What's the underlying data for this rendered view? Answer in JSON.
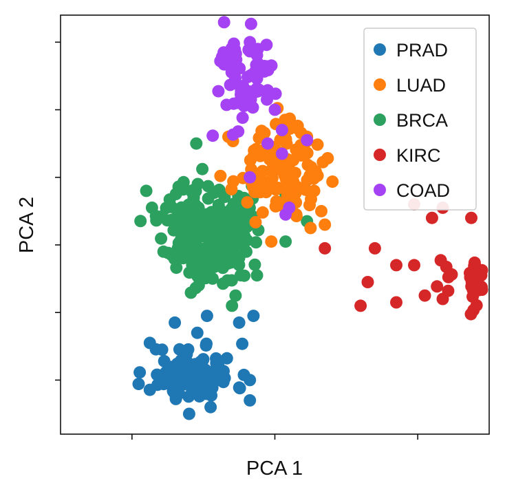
{
  "chart_data": {
    "type": "scatter",
    "title": "",
    "xlabel": "PCA 1",
    "ylabel": "PCA 2",
    "xlim": [
      -1.0,
      5.0
    ],
    "ylim": [
      -0.8,
      5.4
    ],
    "x_tick_values": [
      0,
      2,
      4
    ],
    "y_tick_values": [
      0,
      1,
      2,
      3,
      4,
      5
    ],
    "tick_labels_shown": false,
    "grid": false,
    "legend_position": "top-right",
    "series": [
      {
        "name": "PRAD",
        "color": "#1f77b4",
        "center": [
          0.85,
          0.1
        ],
        "spread": [
          0.3,
          0.22
        ],
        "count": 90,
        "seed": 11,
        "points": [
          [
            0.25,
            0.55
          ],
          [
            0.6,
            0.85
          ],
          [
            1.05,
            0.95
          ],
          [
            1.7,
            0.95
          ],
          [
            1.5,
            0.85
          ],
          [
            1.65,
            0.0
          ],
          [
            1.65,
            -0.3
          ],
          [
            0.35,
            0.08
          ],
          [
            0.8,
            -0.5
          ],
          [
            1.1,
            -0.4
          ]
        ]
      },
      {
        "name": "LUAD",
        "color": "#ff7f0e",
        "center": [
          2.05,
          3.1
        ],
        "spread": [
          0.3,
          0.3
        ],
        "count": 110,
        "seed": 23,
        "points": [
          [
            1.35,
            3.6
          ],
          [
            2.45,
            3.6
          ],
          [
            2.55,
            2.8
          ],
          [
            2.65,
            2.5
          ],
          [
            2.5,
            2.25
          ],
          [
            1.95,
            2.05
          ],
          [
            2.7,
            2.3
          ],
          [
            2.3,
            2.45
          ]
        ]
      },
      {
        "name": "BRCA",
        "color": "#2ca02c",
        "fill": "#2ca05f",
        "center": [
          1.05,
          2.2
        ],
        "spread": [
          0.3,
          0.38
        ],
        "count": 230,
        "seed": 37,
        "points": [
          [
            0.2,
            2.8
          ],
          [
            0.28,
            2.55
          ],
          [
            0.9,
            3.5
          ],
          [
            1.6,
            1.9
          ],
          [
            1.75,
            1.55
          ],
          [
            2.15,
            2.05
          ],
          [
            2.45,
            2.35
          ],
          [
            2.15,
            2.75
          ],
          [
            1.4,
            1.1
          ],
          [
            1.45,
            1.25
          ]
        ]
      },
      {
        "name": "KIRC",
        "color": "#d62728",
        "center": [
          5.2,
          1.5
        ],
        "spread": [
          0.35,
          0.22
        ],
        "count": 140,
        "seed": 53,
        "points": [
          [
            3.2,
            1.1
          ],
          [
            3.4,
            1.95
          ],
          [
            3.3,
            1.45
          ],
          [
            3.7,
            1.7
          ],
          [
            3.7,
            1.15
          ],
          [
            3.95,
            1.7
          ],
          [
            4.2,
            2.4
          ],
          [
            4.35,
            2.55
          ],
          [
            3.95,
            2.6
          ],
          [
            4.75,
            2.4
          ],
          [
            4.1,
            1.25
          ],
          [
            4.35,
            1.2
          ],
          [
            2.7,
            1.95
          ],
          [
            5.3,
            0.85
          ]
        ]
      },
      {
        "name": "COAD",
        "color": "#a442f4",
        "center": [
          1.6,
          4.4
        ],
        "spread": [
          0.22,
          0.38
        ],
        "count": 70,
        "seed": 71,
        "points": [
          [
            1.65,
            5.0
          ],
          [
            1.35,
            4.85
          ],
          [
            2.0,
            4.0
          ],
          [
            2.1,
            3.7
          ],
          [
            2.45,
            3.55
          ],
          [
            1.9,
            3.5
          ],
          [
            2.1,
            3.35
          ],
          [
            2.2,
            2.55
          ],
          [
            2.15,
            2.45
          ],
          [
            1.65,
            3.0
          ]
        ]
      }
    ]
  }
}
